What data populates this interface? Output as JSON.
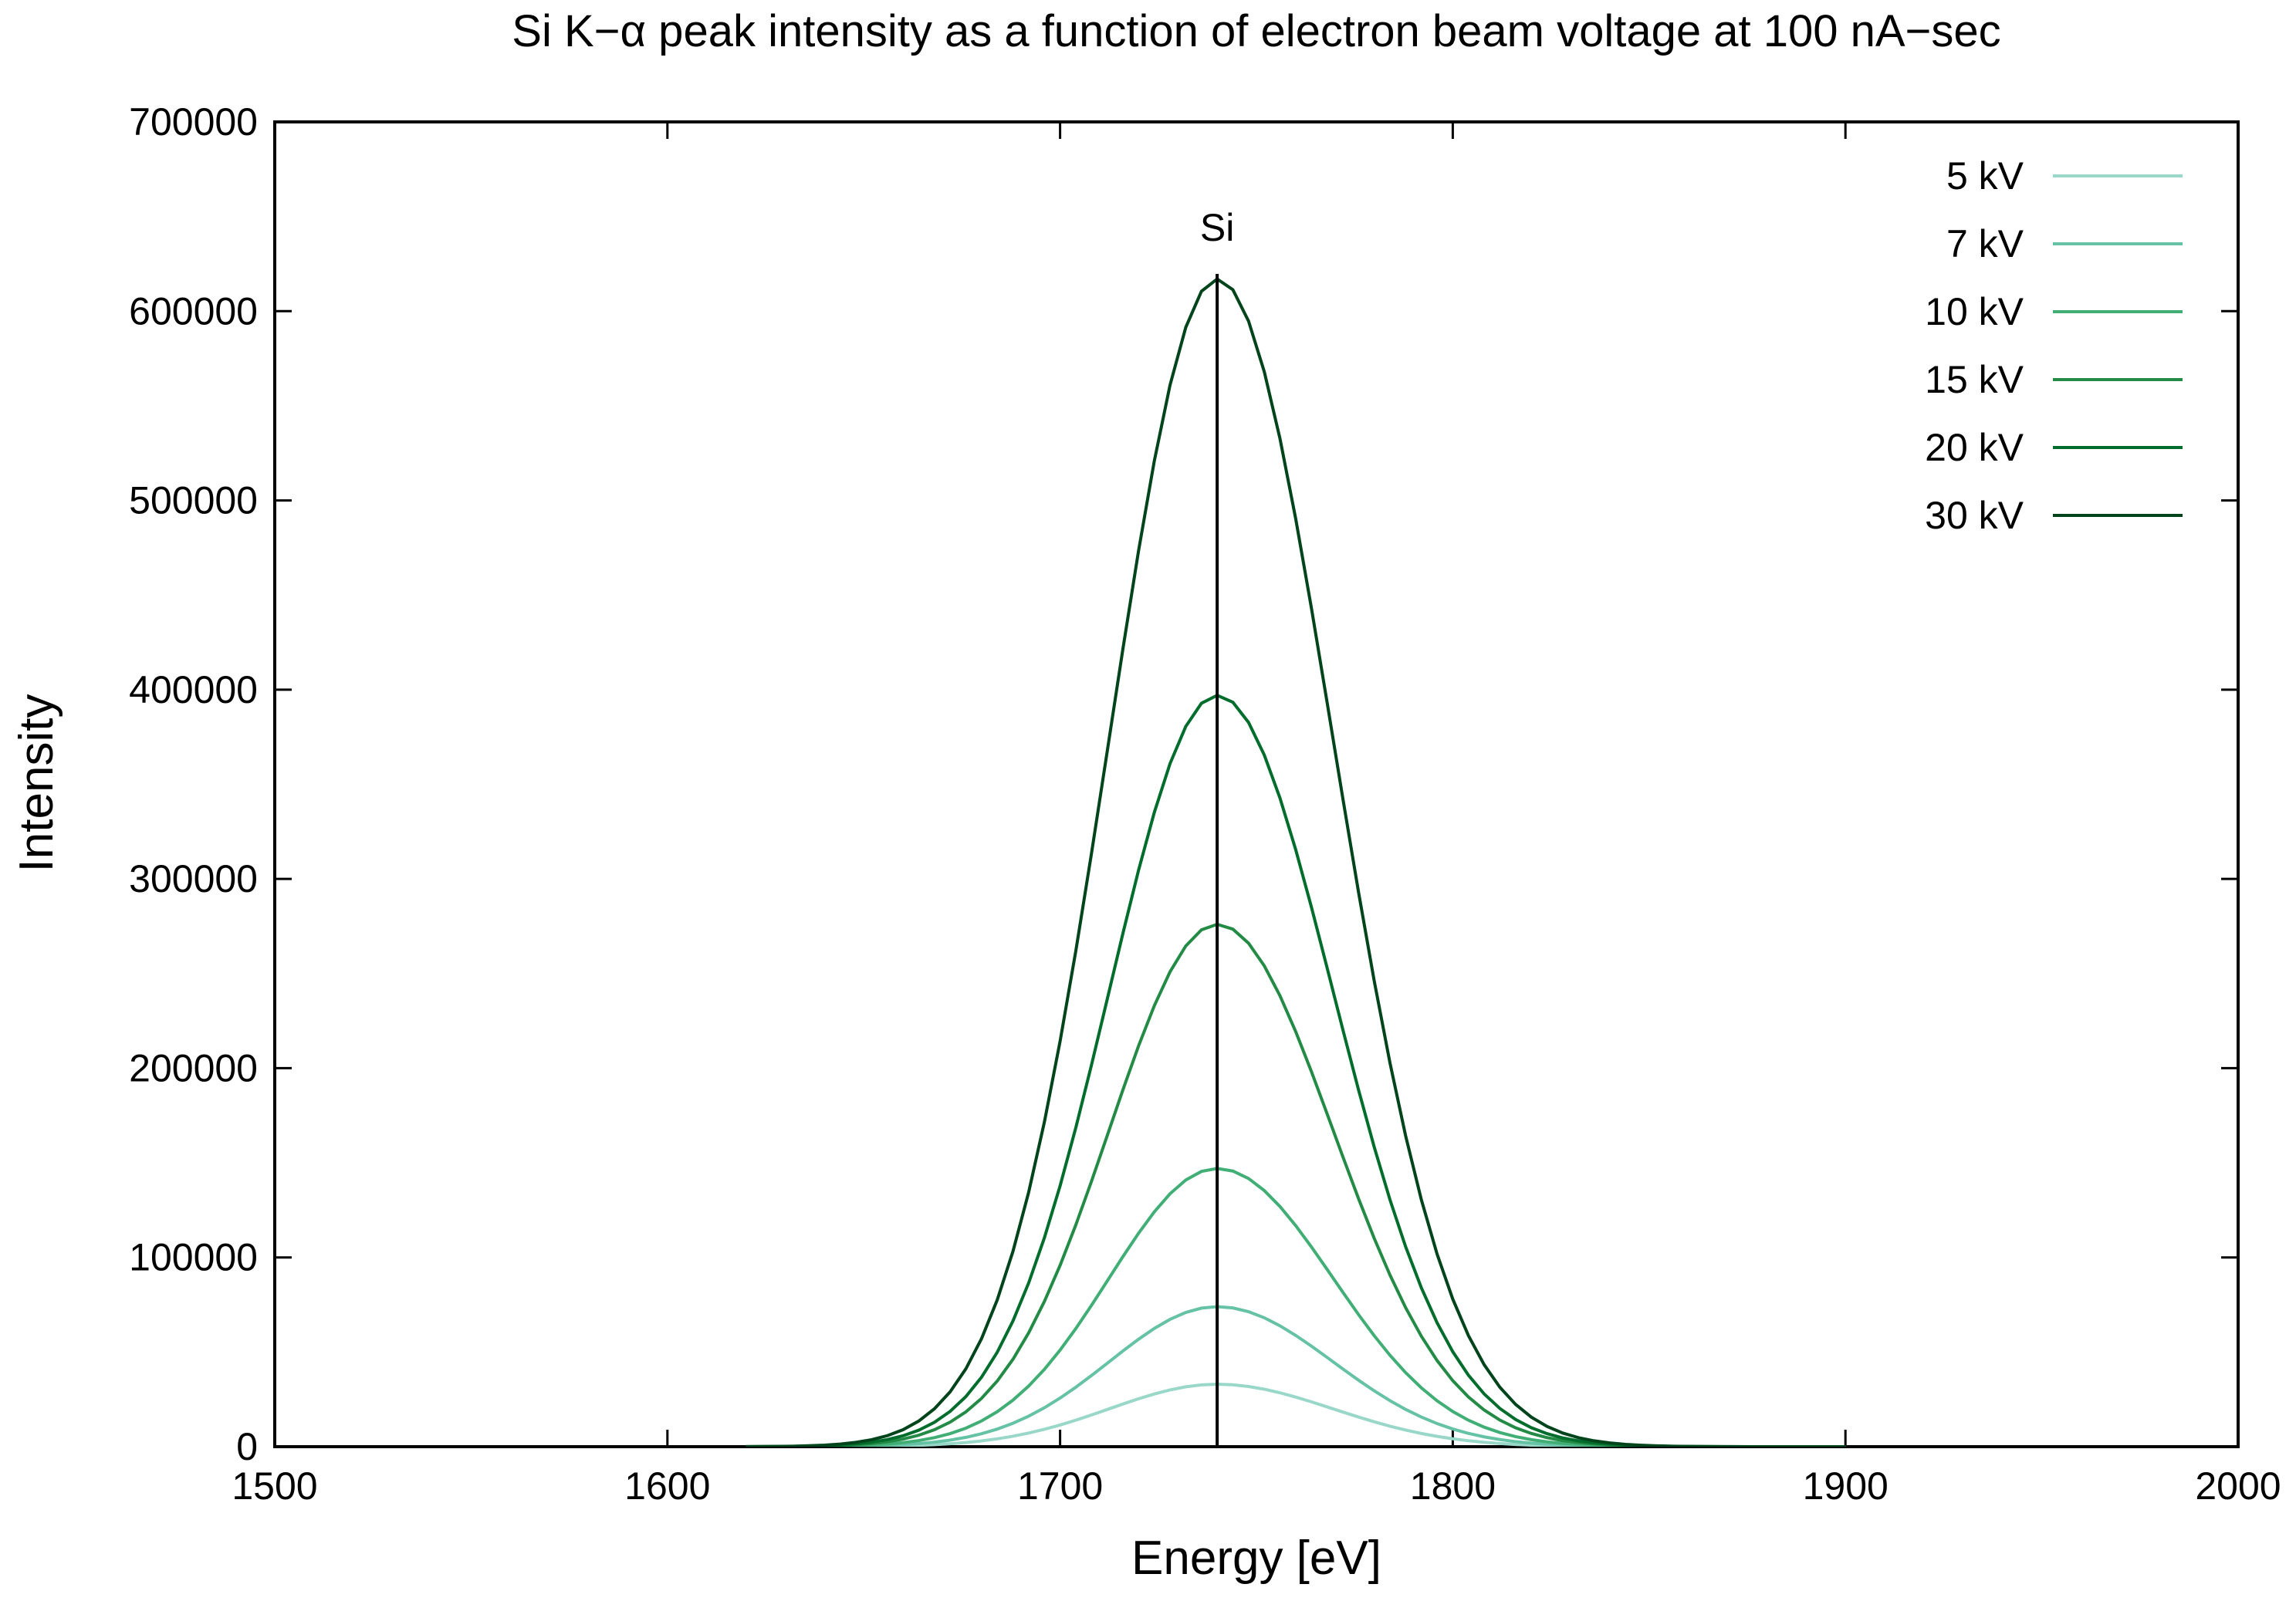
{
  "chart_data": {
    "type": "line",
    "title": "Si K−α peak intensity as a function of electron beam voltage at 100 nA−sec",
    "xlabel": "Energy [eV]",
    "ylabel": "Intensity",
    "xlim": [
      1500,
      2000
    ],
    "ylim": [
      0,
      700000
    ],
    "xticks": [
      1500,
      1600,
      1700,
      1800,
      1900,
      2000
    ],
    "yticks": [
      0,
      100000,
      200000,
      300000,
      400000,
      500000,
      600000,
      700000
    ],
    "x_tick_labels": [
      "1500",
      "1600",
      "1700",
      "1800",
      "1900",
      "2000"
    ],
    "y_tick_labels": [
      "0",
      "100000",
      "200000",
      "300000",
      "400000",
      "500000",
      "600000",
      "700000"
    ],
    "grid": false,
    "legend_position": "top-right",
    "annotations": [
      {
        "text": "Si",
        "x": 1740,
        "type": "vertical-line"
      }
    ],
    "peak_center": 1740,
    "sigma_low": 27.5,
    "sigma_high": 29.5,
    "x_start": 1620,
    "x_end": 1900,
    "x_step": 4,
    "series": [
      {
        "name": "5 kV",
        "peak": 33000,
        "color": "#99d8c9"
      },
      {
        "name": "7 kV",
        "peak": 74000,
        "color": "#66c2a4"
      },
      {
        "name": "10 kV",
        "peak": 147000,
        "color": "#41ae76"
      },
      {
        "name": "15 kV",
        "peak": 276000,
        "color": "#238b45"
      },
      {
        "name": "20 kV",
        "peak": 397000,
        "color": "#006d2c"
      },
      {
        "name": "30 kV",
        "peak": 617000,
        "color": "#00441b"
      }
    ]
  }
}
